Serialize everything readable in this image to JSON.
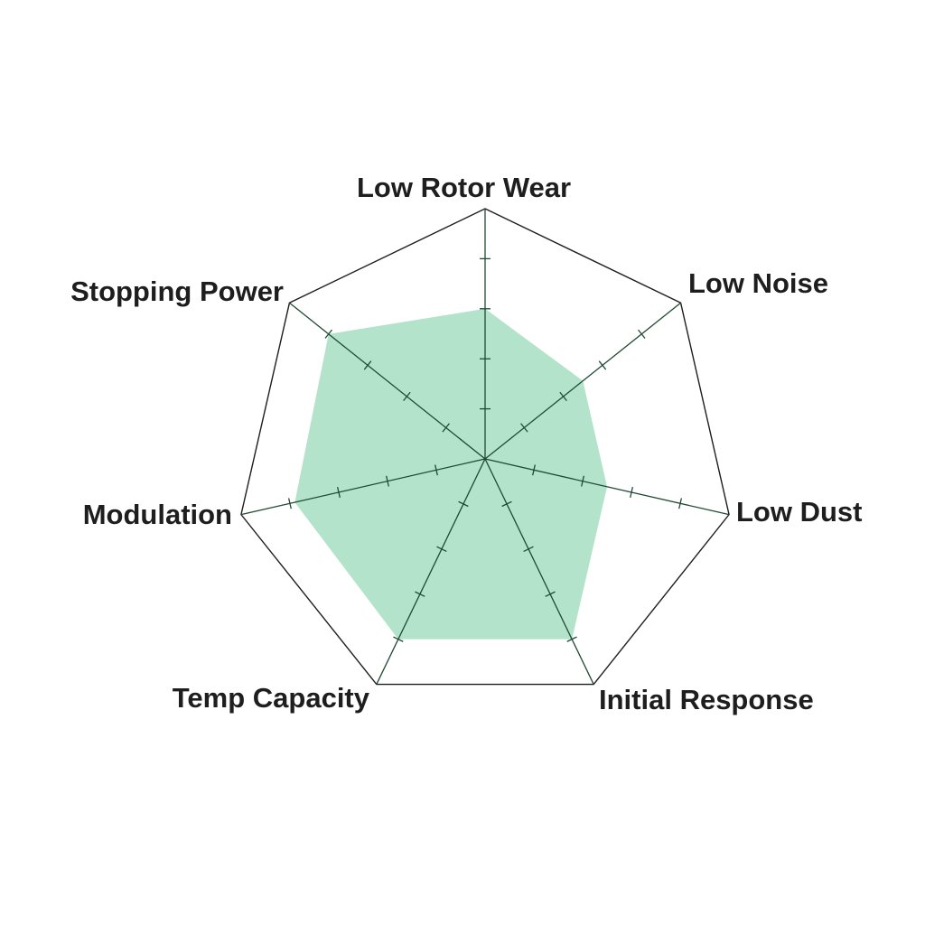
{
  "chart_data": {
    "type": "radar",
    "axes": [
      "Low Rotor Wear",
      "Low Noise",
      "Low Dust",
      "Initial Response",
      "Temp Capacity",
      "Modulation",
      "Stopping Power"
    ],
    "values": [
      0.6,
      0.5,
      0.5,
      0.8,
      0.8,
      0.78,
      0.8
    ],
    "range": [
      0,
      1
    ],
    "tick_count": 5,
    "grid": false,
    "fill_color": "#b3e3ca",
    "axis_color": "#1f4a33",
    "outline_color": "#1e1e1e"
  }
}
